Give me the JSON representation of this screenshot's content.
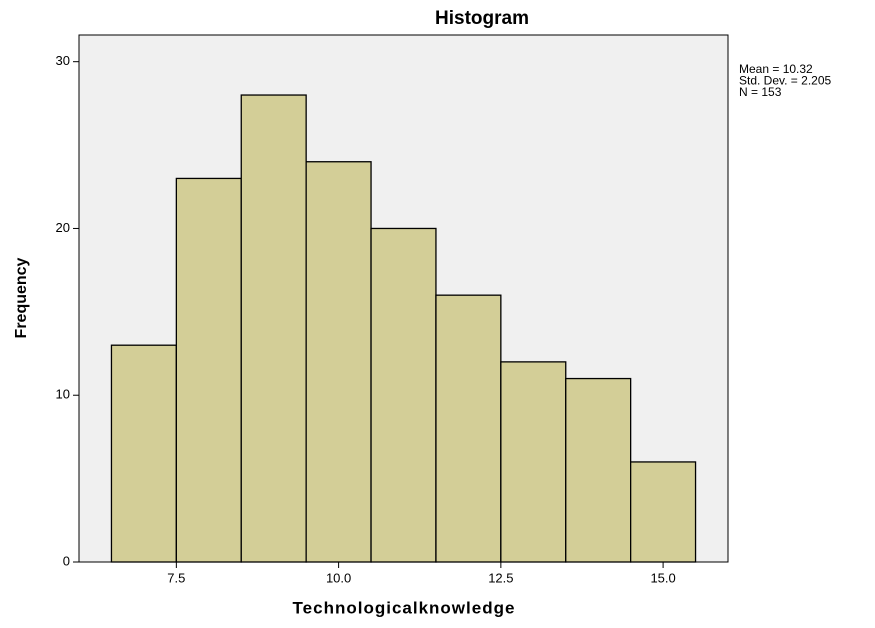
{
  "chart_data": {
    "type": "histogram",
    "title": "Histogram",
    "xlabel": "Technologicalknowledge",
    "ylabel": "Frequency",
    "bins": [
      6.5,
      7.5,
      8.5,
      9.5,
      10.5,
      11.5,
      12.5,
      13.5,
      14.5,
      15.5
    ],
    "values": [
      13,
      23,
      28,
      24,
      20,
      16,
      12,
      11,
      6
    ],
    "color": "#d3ce97",
    "background": "#f0f0f0",
    "xlim": [
      6,
      16
    ],
    "xticks": [
      7.5,
      {
        "value": 10,
        "label": "10.0"
      },
      12.5,
      {
        "value": 15,
        "label": "15.0"
      }
    ],
    "ylim": [
      0,
      31.6
    ],
    "yticks": [
      0,
      10,
      20,
      30
    ],
    "annotations": [
      "Mean = 10.32",
      "Std. Dev. = 2.205",
      "N = 153"
    ]
  }
}
